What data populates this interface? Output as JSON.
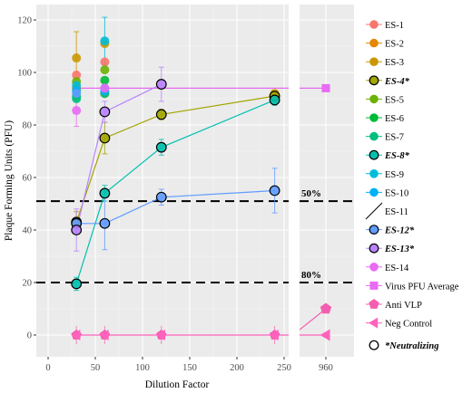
{
  "chart_data": {
    "type": "scatter",
    "xlabel": "Dilution Factor",
    "ylabel": "Plaque Forming Units (PFU)",
    "xlim": [
      0,
      250
    ],
    "ylim": [
      -5,
      125
    ],
    "x_ticks": [
      "0",
      "50",
      "100",
      "150",
      "200",
      "250"
    ],
    "y_ticks": [
      "0",
      "20",
      "40",
      "60",
      "80",
      "100",
      "120"
    ],
    "side_panel_tick": "960",
    "grid": true,
    "legend_position": "right",
    "reference_lines": [
      {
        "value": 51,
        "label": "50%"
      },
      {
        "value": 20,
        "label": "80%"
      }
    ],
    "series": [
      {
        "name": "ES-1",
        "color": "#F8766D",
        "neutralizing": false,
        "points": [
          [
            30,
            99
          ],
          [
            60,
            104
          ]
        ]
      },
      {
        "name": "ES-2",
        "color": "#E58700",
        "neutralizing": false,
        "points": [
          [
            30,
            94
          ],
          [
            60,
            92
          ]
        ]
      },
      {
        "name": "ES-3",
        "color": "#C99800",
        "neutralizing": false,
        "points": [
          [
            30,
            105.5
          ],
          [
            60,
            111
          ],
          [
            240,
            92
          ]
        ],
        "errors": [
          [
            30,
            10
          ],
          [
            60,
            0
          ],
          [
            240,
            0
          ]
        ]
      },
      {
        "name": "ES-4*",
        "color": "#A3A500",
        "neutralizing": true,
        "points": [
          [
            30,
            43
          ],
          [
            60,
            75
          ],
          [
            120,
            84
          ],
          [
            240,
            91
          ]
        ],
        "errors": [
          [
            30,
            4
          ],
          [
            60,
            6
          ],
          [
            120,
            2
          ],
          [
            240,
            2
          ]
        ]
      },
      {
        "name": "ES-5",
        "color": "#6BB100",
        "neutralizing": false,
        "points": [
          [
            30,
            96.5
          ],
          [
            60,
            101
          ]
        ]
      },
      {
        "name": "ES-6",
        "color": "#00BA38",
        "neutralizing": false,
        "points": [
          [
            30,
            91
          ],
          [
            60,
            97
          ]
        ]
      },
      {
        "name": "ES-7",
        "color": "#00BF7D",
        "neutralizing": false,
        "points": [
          [
            30,
            90
          ],
          [
            60,
            92
          ]
        ]
      },
      {
        "name": "ES-8*",
        "color": "#00C0AF",
        "neutralizing": true,
        "points": [
          [
            30,
            19.5
          ],
          [
            60,
            54
          ],
          [
            120,
            71.5
          ],
          [
            240,
            89.5
          ]
        ],
        "errors": [
          [
            30,
            2.5
          ],
          [
            60,
            3
          ],
          [
            120,
            3
          ],
          [
            240,
            2
          ]
        ]
      },
      {
        "name": "ES-9",
        "color": "#00BCD8",
        "neutralizing": false,
        "points": [
          [
            30,
            95
          ],
          [
            60,
            112
          ]
        ],
        "errors": [
          [
            30,
            0
          ],
          [
            60,
            9
          ]
        ]
      },
      {
        "name": "ES-10",
        "color": "#00B0F6",
        "neutralizing": false,
        "points": [
          [
            30,
            93
          ],
          [
            60,
            93
          ]
        ]
      },
      {
        "name": "ES-11",
        "color": "#619CFF",
        "neutralizing": false,
        "points": [
          [
            30,
            92
          ],
          [
            60,
            94
          ]
        ]
      },
      {
        "name": "ES-12*",
        "color": "#619CFF",
        "neutralizing": true,
        "points": [
          [
            30,
            42.5
          ],
          [
            60,
            42.5
          ],
          [
            120,
            52.5
          ],
          [
            240,
            55
          ]
        ],
        "errors": [
          [
            30,
            0
          ],
          [
            60,
            10
          ],
          [
            120,
            3
          ],
          [
            240,
            8.5
          ]
        ]
      },
      {
        "name": "ES-13*",
        "color": "#B983FF",
        "neutralizing": true,
        "points": [
          [
            30,
            40
          ],
          [
            60,
            85
          ],
          [
            120,
            95.5
          ]
        ],
        "errors": [
          [
            30,
            8
          ],
          [
            60,
            4
          ],
          [
            120,
            6.5
          ]
        ]
      },
      {
        "name": "ES-14",
        "color": "#E76BF3",
        "neutralizing": false,
        "points": [
          [
            30,
            85.5
          ],
          [
            60,
            94
          ]
        ],
        "errors": [
          [
            30,
            6
          ],
          [
            60,
            0
          ]
        ]
      }
    ],
    "virus_pfu_average": {
      "name": "Virus PFU Average",
      "color": "#E76BF3",
      "value": 94
    },
    "anti_vlp": {
      "name": "Anti VLP",
      "color": "#F25EB0",
      "points": [
        [
          30,
          0
        ],
        [
          60,
          0
        ],
        [
          120,
          0
        ],
        [
          240,
          0
        ]
      ],
      "side_value": 10
    },
    "neg_control": {
      "name": "Neg Control",
      "color": "#FF62BC",
      "points": [
        [
          30,
          0
        ],
        [
          60,
          0
        ],
        [
          120,
          0
        ],
        [
          240,
          0
        ]
      ],
      "side_value": 0
    },
    "neutralizing_legend": "*Neutralizing"
  }
}
